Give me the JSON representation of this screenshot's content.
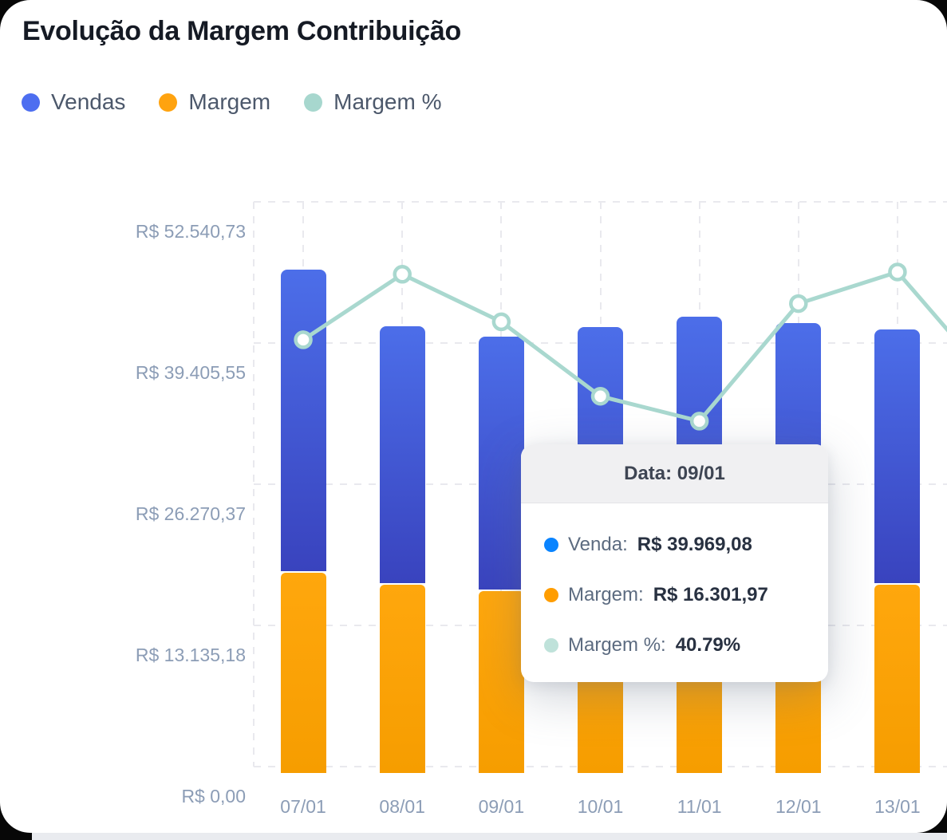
{
  "header": {
    "title": "Evolução da Margem Contribuição"
  },
  "legend": {
    "items": [
      {
        "label": "Vendas",
        "color": "#4d6ef0"
      },
      {
        "label": "Margem",
        "color": "#ffa30f"
      },
      {
        "label": "Margem %",
        "color": "#a7d7ce"
      }
    ]
  },
  "chart_data": {
    "type": "bar",
    "subtype": "stacked-bar-with-line-overlay",
    "categories": [
      "07/01",
      "08/01",
      "09/01",
      "10/01",
      "11/01",
      "12/01",
      "13/01"
    ],
    "series": [
      {
        "name": "Vendas",
        "type": "bar",
        "stack": "top (bar top equals Venda total)",
        "color": "#4c6ee9",
        "color_gradient_bottom": "#3943be",
        "values": [
          46200,
          41000,
          39969.08,
          40900,
          41850,
          41250,
          40660
        ]
      },
      {
        "name": "Margem",
        "type": "bar",
        "stack": "bottom",
        "color": "#ffa70d",
        "values": [
          18030,
          16900,
          16301.97,
          15300,
          15300,
          16770,
          16900
        ]
      },
      {
        "name": "Margem %",
        "type": "line",
        "color": "#a9d8cf",
        "marker": "white-circle-teal-ring",
        "values_pct": [
          39.2,
          45.0,
          40.79,
          34.2,
          32.0,
          42.4,
          45.2
        ],
        "next_offscreen_pct": 38.9
      }
    ],
    "y_axis": {
      "min": 0,
      "max": 52540.73,
      "ticks": [
        {
          "label": "R$ 52.540,73",
          "value": 52540.73
        },
        {
          "label": "R$ 39.405,55",
          "value": 39405.55
        },
        {
          "label": "R$ 26.270,37",
          "value": 26270.37
        },
        {
          "label": "R$ 13.135,18",
          "value": 13135.18
        },
        {
          "label": "R$ 0,00",
          "value": 0
        }
      ]
    },
    "secondary_axis": {
      "visible": false,
      "unit": "%",
      "min": 0,
      "max": 50
    },
    "grid": "dashed horizontal and vertical",
    "legend_position": "top-left",
    "title": "Evolução da Margem Contribuição"
  },
  "tooltip": {
    "title": "Data: 09/01",
    "rows": [
      {
        "label": "Venda:",
        "value": "R$ 39.969,08",
        "dot_color": "#0a84ff"
      },
      {
        "label": "Margem:",
        "value": "R$ 16.301,97",
        "dot_color": "#ff9d00"
      },
      {
        "label": "Margem %:",
        "value": "40.79%",
        "dot_color": "#bfe2da"
      }
    ]
  }
}
